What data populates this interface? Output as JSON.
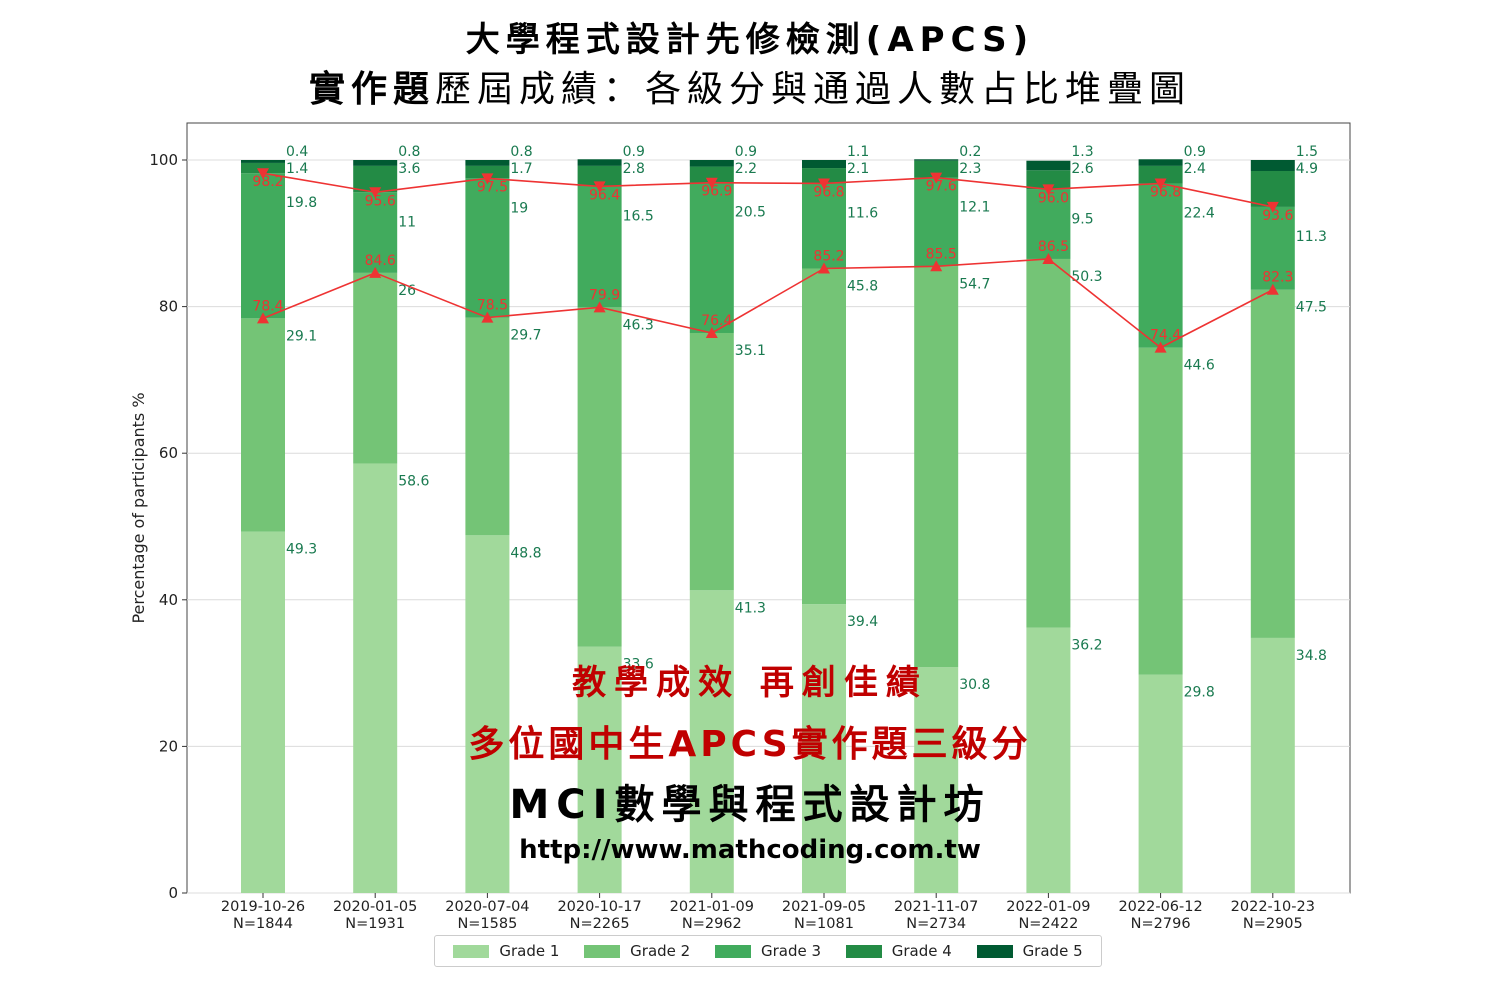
{
  "title_line1": "大學程式設計先修檢測(APCS)",
  "title_line2_bold": "實作題",
  "title_line2_rest": "歷屆成績：各級分與通過人數占比堆疊圖",
  "promo": {
    "line1": "教學成效 再創佳績",
    "line2": "多位國中生APCS實作題三級分",
    "line3": "MCI數學與程式設計坊",
    "line4": "http://www.mathcoding.com.tw"
  },
  "colors": {
    "grade1": "#a1d99b",
    "grade2": "#74c476",
    "grade3": "#41ab5d",
    "grade4": "#238b45",
    "grade5": "#005a32",
    "label": "#1a7a50",
    "line": "#ee3333"
  },
  "chart_data": {
    "type": "bar",
    "stacked": true,
    "ylabel": "Percentage of participants  %",
    "ylim": [
      0,
      100
    ],
    "yticks": [
      0,
      20,
      40,
      60,
      80,
      100
    ],
    "grid": "horizontal",
    "legend_position": "bottom",
    "categories": [
      [
        "2019-10-26",
        "N=1844"
      ],
      [
        "2020-01-05",
        "N=1931"
      ],
      [
        "2020-07-04",
        "N=1585"
      ],
      [
        "2020-10-17",
        "N=2265"
      ],
      [
        "2021-01-09",
        "N=2962"
      ],
      [
        "2021-09-05",
        "N=1081"
      ],
      [
        "2021-11-07",
        "N=2734"
      ],
      [
        "2022-01-09",
        "N=2422"
      ],
      [
        "2022-06-12",
        "N=2796"
      ],
      [
        "2022-10-23",
        "N=2905"
      ]
    ],
    "series": [
      {
        "name": "Grade 1",
        "values": [
          49.3,
          58.6,
          48.8,
          33.6,
          41.3,
          39.4,
          30.8,
          36.2,
          29.8,
          34.8
        ]
      },
      {
        "name": "Grade 2",
        "values": [
          29.1,
          26,
          29.7,
          46.3,
          35.1,
          45.8,
          54.7,
          50.3,
          44.6,
          47.5
        ]
      },
      {
        "name": "Grade 3",
        "values": [
          19.8,
          11,
          19,
          16.5,
          20.5,
          11.6,
          12.1,
          9.5,
          22.4,
          11.3
        ]
      },
      {
        "name": "Grade 4",
        "values": [
          1.4,
          3.6,
          1.7,
          2.8,
          2.2,
          2.1,
          2.3,
          2.6,
          2.4,
          4.9
        ]
      },
      {
        "name": "Grade 5",
        "values": [
          0.4,
          0.8,
          0.8,
          0.9,
          0.9,
          1.1,
          0.2,
          1.3,
          0.9,
          1.5
        ]
      }
    ],
    "lines": [
      {
        "marker": "triangle-down",
        "values": [
          98.2,
          95.6,
          97.5,
          96.4,
          96.9,
          96.8,
          97.6,
          96.0,
          96.8,
          93.6
        ],
        "labels": [
          "98.2",
          "95.6",
          "97.5",
          "96.4",
          "96.9",
          "96.8",
          "97.6",
          "96.0",
          "96.8",
          "93.6"
        ]
      },
      {
        "marker": "triangle-up",
        "values": [
          78.4,
          84.6,
          78.5,
          79.9,
          76.4,
          85.2,
          85.5,
          86.5,
          74.4,
          82.3
        ],
        "labels": [
          "78.4",
          "84.6",
          "78.5",
          "79.9",
          "76.4",
          "85.2",
          "85.5",
          "86.5",
          "74.4",
          "82.3"
        ]
      }
    ]
  }
}
